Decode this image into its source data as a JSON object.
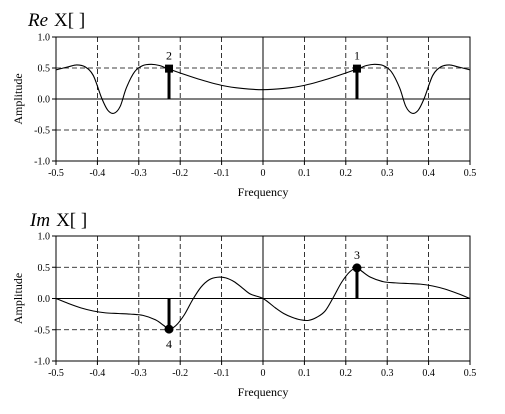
{
  "chart_data": [
    {
      "type": "line",
      "title_prefix": "Re",
      "title_suffix": "X[  ]",
      "xlabel": "Frequency",
      "ylabel": "Amplitude",
      "xlim": [
        -0.5,
        0.5
      ],
      "ylim": [
        -1.0,
        1.0
      ],
      "grid": true,
      "xticks": [
        "-0.5",
        "-0.4",
        "-0.3",
        "-0.2",
        "-0.1",
        "0",
        "0.1",
        "0.2",
        "0.3",
        "0.4",
        "0.5"
      ],
      "yticks": [
        "-1.0",
        "-0.5",
        "0.0",
        "0.5",
        "1.0"
      ],
      "series": [
        {
          "x": [
            -0.5,
            -0.47,
            -0.45,
            -0.43,
            -0.41,
            -0.39,
            -0.375,
            -0.36,
            -0.345,
            -0.33,
            -0.31,
            -0.29,
            -0.27,
            -0.25,
            -0.23,
            -0.2,
            -0.15,
            -0.1,
            -0.05,
            0,
            0.05,
            0.1,
            0.15,
            0.2,
            0.23,
            0.25,
            0.27,
            0.29,
            0.31,
            0.33,
            0.345,
            0.36,
            0.375,
            0.39,
            0.41,
            0.43,
            0.45,
            0.47,
            0.5
          ],
          "values": [
            0.47,
            0.52,
            0.55,
            0.52,
            0.38,
            0.02,
            -0.18,
            -0.23,
            -0.12,
            0.18,
            0.44,
            0.54,
            0.56,
            0.54,
            0.49,
            0.42,
            0.31,
            0.22,
            0.17,
            0.15,
            0.17,
            0.22,
            0.31,
            0.42,
            0.49,
            0.54,
            0.56,
            0.54,
            0.44,
            0.18,
            -0.12,
            -0.23,
            -0.18,
            0.02,
            0.38,
            0.52,
            0.55,
            0.52,
            0.47
          ]
        }
      ],
      "markers": [
        {
          "label": "1",
          "x": 0.227,
          "y": 0.49,
          "shape": "square",
          "label_position": "above"
        },
        {
          "label": "2",
          "x": -0.227,
          "y": 0.49,
          "shape": "square",
          "label_position": "above"
        }
      ]
    },
    {
      "type": "line",
      "title_prefix": "Im",
      "title_suffix": "X[  ]",
      "xlabel": "Frequency",
      "ylabel": "Amplitude",
      "xlim": [
        -0.5,
        0.5
      ],
      "ylim": [
        -1.0,
        1.0
      ],
      "grid": true,
      "xticks": [
        "-0.5",
        "-0.4",
        "-0.3",
        "-0.2",
        "-0.1",
        "0",
        "0.1",
        "0.2",
        "0.3",
        "0.4",
        "0.5"
      ],
      "yticks": [
        "-1.0",
        "-0.5",
        "0.0",
        "0.5",
        "1.0"
      ],
      "series": [
        {
          "x": [
            -0.5,
            -0.47,
            -0.44,
            -0.41,
            -0.38,
            -0.35,
            -0.32,
            -0.29,
            -0.26,
            -0.24,
            -0.227,
            -0.21,
            -0.19,
            -0.17,
            -0.15,
            -0.13,
            -0.11,
            -0.09,
            -0.07,
            -0.05,
            -0.03,
            0,
            0.03,
            0.05,
            0.07,
            0.09,
            0.11,
            0.13,
            0.15,
            0.17,
            0.19,
            0.21,
            0.227,
            0.24,
            0.26,
            0.29,
            0.32,
            0.35,
            0.38,
            0.41,
            0.44,
            0.47,
            0.5
          ],
          "values": [
            0.0,
            -0.08,
            -0.15,
            -0.2,
            -0.23,
            -0.24,
            -0.25,
            -0.27,
            -0.34,
            -0.43,
            -0.49,
            -0.43,
            -0.26,
            -0.02,
            0.18,
            0.3,
            0.34,
            0.33,
            0.27,
            0.17,
            0.07,
            0.0,
            -0.15,
            -0.24,
            -0.3,
            -0.34,
            -0.35,
            -0.3,
            -0.2,
            0.02,
            0.26,
            0.43,
            0.49,
            0.43,
            0.34,
            0.27,
            0.25,
            0.24,
            0.23,
            0.2,
            0.15,
            0.08,
            0.0
          ]
        }
      ],
      "markers": [
        {
          "label": "3",
          "x": 0.227,
          "y": 0.49,
          "shape": "circle",
          "label_position": "above"
        },
        {
          "label": "4",
          "x": -0.227,
          "y": -0.49,
          "shape": "circle",
          "label_position": "below"
        }
      ]
    }
  ]
}
